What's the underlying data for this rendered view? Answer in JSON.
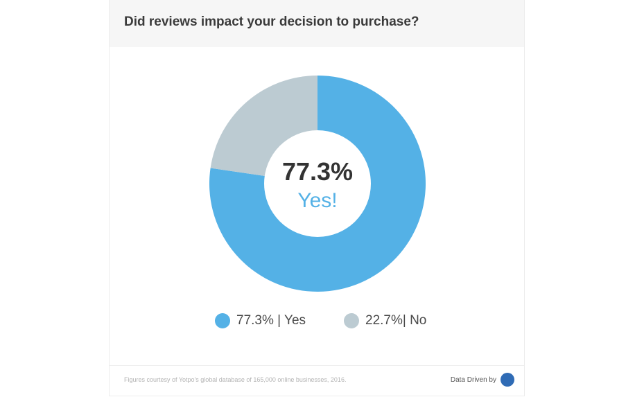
{
  "header": {
    "title": "Did reviews impact your decision to purchase?"
  },
  "chart_data": {
    "type": "pie",
    "variant": "donut",
    "title": "Did reviews impact your decision to purchase?",
    "center_value": "77.3%",
    "center_label": "Yes!",
    "series": [
      {
        "label": "Yes",
        "value": 77.3,
        "color": "#54b1e6"
      },
      {
        "label": "No",
        "value": 22.7,
        "color": "#bccbd2"
      }
    ],
    "legend": [
      {
        "text": "77.3% | Yes",
        "color": "#54b1e6"
      },
      {
        "text": "22.7%| No",
        "color": "#bccbd2"
      }
    ],
    "legend_position": "bottom"
  },
  "footer": {
    "footnote": "Figures courtesy of Yotpo's global database of 165,000 online businesses, 2016.",
    "brand_label": "Data Driven by",
    "brand_icon": "yotpo-logo-icon"
  },
  "colors": {
    "header_bg": "#f6f6f6",
    "center_value": "#333333",
    "center_label": "#54b1e6"
  }
}
